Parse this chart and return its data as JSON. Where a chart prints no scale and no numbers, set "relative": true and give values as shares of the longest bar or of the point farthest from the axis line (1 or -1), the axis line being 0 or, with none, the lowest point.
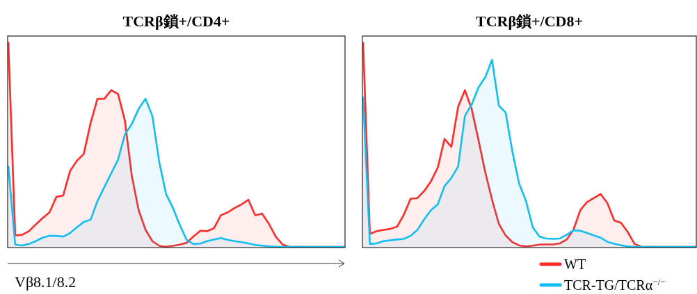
{
  "chart_data": [
    {
      "type": "area",
      "title": "TCRβ鎖+/CD4+",
      "xlabel": "Vβ8.1/8.2",
      "relative": true,
      "categories": [
        null,
        null,
        null,
        null,
        null,
        null,
        null,
        null,
        null,
        null,
        null,
        null,
        null,
        null,
        null,
        null,
        null,
        null,
        null,
        null,
        null,
        null,
        null,
        null,
        null,
        null,
        null,
        null,
        null,
        null,
        null,
        null,
        null,
        null,
        null,
        null,
        null,
        null,
        null,
        null,
        null,
        null,
        null,
        null,
        null,
        null,
        null,
        null,
        null,
        null
      ],
      "series": [
        {
          "color": "#ff2a2a",
          "values": [
            1.0,
            0.056,
            0.059,
            0.077,
            0.11,
            0.141,
            0.169,
            0.245,
            0.252,
            0.372,
            0.422,
            0.456,
            0.608,
            0.726,
            0.726,
            0.768,
            0.749,
            0.619,
            0.349,
            0.18,
            0.084,
            0.028,
            0.005,
            0,
            0.005,
            0.011,
            0.02,
            0.051,
            0.079,
            0.077,
            0.092,
            0.155,
            0.169,
            0.191,
            0.208,
            0.231,
            0.155,
            0.163,
            0.113,
            0.05,
            0.011,
            0,
            0,
            0,
            0,
            0,
            0,
            0,
            0,
            0
          ]
        },
        {
          "color": "#12bdf0",
          "values": [
            0.394,
            0.011,
            0.007,
            0.014,
            0.028,
            0.045,
            0.054,
            0.054,
            0.05,
            0.068,
            0.096,
            0.122,
            0.133,
            0.225,
            0.293,
            0.36,
            0.428,
            0.552,
            0.602,
            0.676,
            0.726,
            0.642,
            0.417,
            0.259,
            0.191,
            0.107,
            0.034,
            0.014,
            0.016,
            0.028,
            0.036,
            0.043,
            0.034,
            0.028,
            0.023,
            0.017,
            0.009,
            0.006,
            0.002,
            0,
            0,
            0,
            0,
            0,
            0,
            0,
            0,
            0,
            0,
            0
          ]
        }
      ]
    },
    {
      "type": "area",
      "title": "TCRβ鎖+/CD8+",
      "relative": true,
      "legend": "bottom right",
      "categories": [
        null,
        null,
        null,
        null,
        null,
        null,
        null,
        null,
        null,
        null,
        null,
        null,
        null,
        null,
        null,
        null,
        null,
        null,
        null,
        null,
        null,
        null,
        null,
        null,
        null,
        null,
        null,
        null,
        null,
        null,
        null,
        null,
        null,
        null,
        null,
        null,
        null,
        null,
        null,
        null,
        null,
        null,
        null,
        null,
        null,
        null,
        null,
        null,
        null,
        null
      ],
      "series": [
        {
          "name": "WT",
          "color": "#ff2a2a",
          "values": [
            1.0,
            0.064,
            0.077,
            0.083,
            0.088,
            0.099,
            0.158,
            0.236,
            0.239,
            0.274,
            0.321,
            0.389,
            0.529,
            0.49,
            0.687,
            0.768,
            0.676,
            0.524,
            0.366,
            0.231,
            0.113,
            0.056,
            0.023,
            0.007,
            0.002,
            0.006,
            0.011,
            0.012,
            0.012,
            0.017,
            0.036,
            0.084,
            0.18,
            0.22,
            0.239,
            0.259,
            0.214,
            0.129,
            0.118,
            0.073,
            0.014,
            0.001,
            0,
            0,
            0,
            0,
            0,
            0,
            0,
            0
          ]
        },
        {
          "name": "TCR-TG/TCRα$^{−/−}$",
          "color": "#12bdf0",
          "values": [
            0.732,
            0.014,
            0.017,
            0.028,
            0.032,
            0.036,
            0.039,
            0.054,
            0.083,
            0.135,
            0.18,
            0.208,
            0.298,
            0.338,
            0.394,
            0.642,
            0.698,
            0.782,
            0.831,
            0.917,
            0.692,
            0.659,
            0.467,
            0.309,
            0.225,
            0.096,
            0.05,
            0.041,
            0.039,
            0.041,
            0.059,
            0.081,
            0.079,
            0.068,
            0.056,
            0.045,
            0.025,
            0.015,
            0.008,
            0.002,
            0,
            0,
            0,
            0,
            0,
            0,
            0,
            0,
            0,
            0
          ]
        }
      ]
    }
  ]
}
